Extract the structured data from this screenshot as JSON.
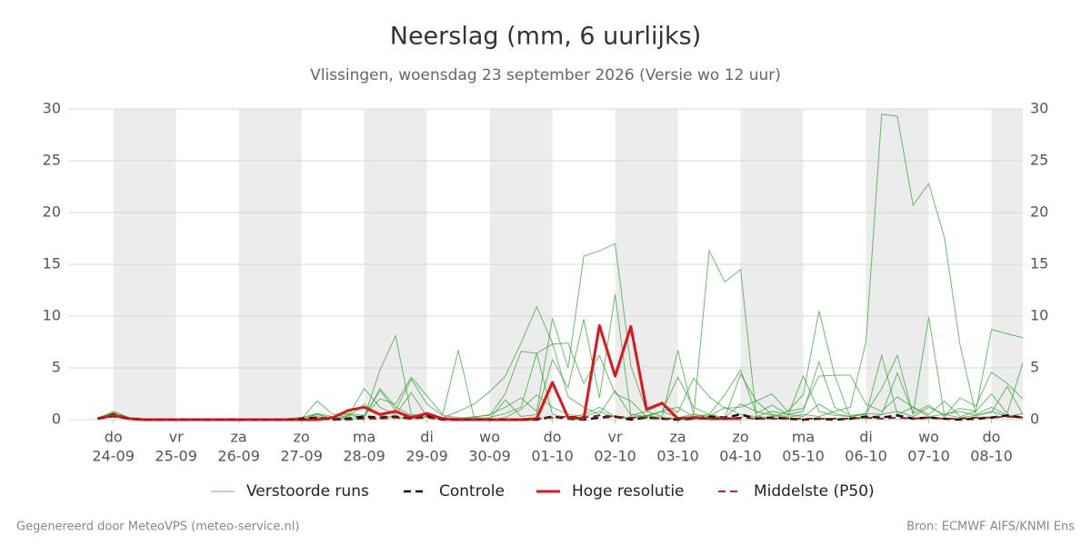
{
  "chart_data": {
    "type": "line",
    "title": "Neerslag (mm, 6 uurlijks)",
    "subtitle": "Vlissingen, woensdag 23 september 2026 (Versie wo 12 uur)",
    "footer_left": "Gegenereerd door MeteoVPS (meteo-service.nl)",
    "footer_right": "Bron: ECMWF AIFS/KNMI Ens",
    "xlim": [
      -0.72,
      14.5
    ],
    "xticks": [
      {
        "value": 0,
        "label": [
          "do",
          "24-09"
        ]
      },
      {
        "value": 1,
        "label": [
          "vr",
          "25-09"
        ]
      },
      {
        "value": 2,
        "label": [
          "za",
          "26-09"
        ]
      },
      {
        "value": 3,
        "label": [
          "zo",
          "27-09"
        ]
      },
      {
        "value": 4,
        "label": [
          "ma",
          "28-09"
        ]
      },
      {
        "value": 5,
        "label": [
          "di",
          "29-09"
        ]
      },
      {
        "value": 6,
        "label": [
          "wo",
          "30-09"
        ]
      },
      {
        "value": 7,
        "label": [
          "do",
          "01-10"
        ]
      },
      {
        "value": 8,
        "label": [
          "vr",
          "02-10"
        ]
      },
      {
        "value": 9,
        "label": [
          "za",
          "03-10"
        ]
      },
      {
        "value": 10,
        "label": [
          "zo",
          "04-10"
        ]
      },
      {
        "value": 11,
        "label": [
          "ma",
          "05-10"
        ]
      },
      {
        "value": 12,
        "label": [
          "di",
          "06-10"
        ]
      },
      {
        "value": 13,
        "label": [
          "wo",
          "07-10"
        ]
      },
      {
        "value": 14,
        "label": [
          "do",
          "08-10"
        ]
      }
    ],
    "ylim": [
      0,
      30
    ],
    "yticks": [
      0,
      5,
      10,
      15,
      20,
      25,
      30
    ],
    "y2lim": [
      0,
      30
    ],
    "y2ticks": [
      0,
      5,
      10,
      15,
      20,
      25,
      30
    ],
    "grid": true,
    "x": [
      -0.25,
      0,
      0.25,
      0.5,
      0.75,
      1,
      1.25,
      1.5,
      1.75,
      2,
      2.25,
      2.5,
      2.75,
      3,
      3.25,
      3.5,
      3.75,
      4,
      4.25,
      4.5,
      4.75,
      5,
      5.25,
      5.5,
      5.75,
      6,
      6.25,
      6.5,
      6.75,
      7,
      7.25,
      7.5,
      7.75,
      8,
      8.25,
      8.5,
      8.75,
      9,
      9.25,
      9.5,
      9.75,
      10,
      10.25,
      10.5,
      10.75,
      11,
      11.25,
      11.5,
      11.75,
      12,
      12.25,
      12.5,
      12.75,
      13,
      13.25,
      13.5,
      13.75,
      14,
      14.25,
      14.5
    ],
    "ensemble": {
      "name": "Verstoorde runs",
      "color": "#3aa63a",
      "runs": [
        [
          0.2,
          0.6,
          0.1,
          0,
          0,
          0,
          0,
          0,
          0,
          0,
          0,
          0,
          0,
          0.2,
          0.5,
          0.1,
          0.3,
          1.5,
          0.4,
          0.2,
          0.1,
          0.5,
          0,
          0,
          0,
          0,
          0.2,
          1,
          2.4,
          1.2,
          0.5,
          0.3,
          0.8,
          0.2,
          0.1,
          0.4,
          0.2,
          0.1,
          0.3,
          0.5,
          0.2,
          1.5,
          0.8,
          0.4,
          0.2,
          0.5,
          0.3,
          0.8,
          1.2,
          7.5,
          29.5,
          29.3,
          20.7,
          22.8,
          17.6,
          7.2,
          0.5,
          1.2,
          0.4,
          0.2
        ],
        [
          0.1,
          0.4,
          0,
          0,
          0,
          0,
          0,
          0,
          0,
          0,
          0,
          0,
          0,
          0,
          0.3,
          0.1,
          0,
          0.2,
          3,
          1.2,
          0.4,
          0.2,
          0.1,
          0.1,
          0.3,
          0.4,
          2.5,
          6.6,
          6.4,
          0.5,
          0.2,
          0.5,
          1.2,
          0.3,
          0.2,
          0.4,
          0.8,
          1.2,
          0.3,
          16.3,
          13.3,
          14.5,
          0.3,
          0.8,
          0.5,
          0.3,
          1.5,
          0.6,
          0.3,
          0.5,
          6.2,
          0.5,
          1.2,
          0.3,
          0.5,
          0.2,
          0.4,
          0.8,
          0.3,
          0.6
        ],
        [
          0.1,
          0.7,
          0.2,
          0,
          0,
          0,
          0,
          0,
          0,
          0,
          0,
          0,
          0.1,
          0.2,
          0.6,
          0.3,
          0.5,
          0.2,
          4.8,
          8.1,
          0.5,
          0.3,
          0.2,
          0.1,
          0.2,
          0.5,
          1.2,
          2.1,
          0.8,
          9.8,
          5,
          15.8,
          16.3,
          17,
          5.2,
          0.8,
          0.3,
          6.7,
          0.5,
          0.3,
          0.2,
          4.4,
          1.8,
          0.5,
          0.3,
          4.2,
          0.8,
          0.4,
          0.3,
          0.6,
          0.5,
          0.8,
          0.3,
          1.2,
          0.5,
          0.8,
          0.4,
          0.7,
          3.2,
          0.5
        ],
        [
          0.2,
          0.3,
          0.1,
          0,
          0,
          0,
          0,
          0,
          0,
          0,
          0,
          0,
          0,
          0,
          0.2,
          0.1,
          0.4,
          3,
          1.2,
          0.5,
          2.6,
          0.3,
          0.2,
          0.8,
          1.5,
          2.7,
          4.2,
          7.4,
          10.9,
          7.4,
          2.2,
          1.2,
          0.5,
          2.8,
          0.4,
          0.8,
          1.5,
          0.7,
          4,
          2.2,
          1.1,
          1.2,
          1.8,
          2.5,
          0.8,
          2.4,
          10.5,
          4.3,
          4.3,
          1.5,
          0.8,
          2.2,
          1.2,
          0.5,
          1.8,
          0.3,
          0.8,
          2.5,
          0.6,
          5.5
        ],
        [
          0.1,
          0.8,
          0.2,
          0,
          0,
          0,
          0,
          0,
          0,
          0,
          0,
          0,
          0,
          0.1,
          1.8,
          0.5,
          0.6,
          0.4,
          2,
          1.5,
          4.1,
          2.3,
          0.5,
          6.7,
          0.2,
          0.1,
          1.9,
          0.3,
          0.5,
          5.8,
          3.1,
          9.7,
          2.1,
          12.1,
          0.5,
          0.3,
          0.8,
          4.1,
          1.2,
          0.5,
          2.4,
          4.8,
          0.6,
          1.4,
          0.5,
          0.8,
          5.6,
          1.2,
          0.4,
          0.6,
          3,
          6.2,
          0.5,
          9.9,
          0.4,
          1.1,
          0.8,
          8.7,
          8.3,
          7.9
        ],
        [
          0.1,
          0.5,
          0,
          0,
          0,
          0,
          0,
          0,
          0,
          0,
          0,
          0,
          0,
          0,
          0.5,
          0.1,
          0.2,
          0.4,
          2.8,
          0.9,
          3.9,
          1.5,
          0.4,
          0.2,
          0.1,
          0.2,
          0.6,
          1.2,
          6.4,
          7.3,
          7.4,
          3.5,
          6.2,
          2.5,
          1.8,
          0.3,
          0.8,
          0.2,
          0.5,
          0.3,
          1.2,
          0.5,
          0.3,
          0.2,
          0.8,
          1.1,
          4.2,
          4.3,
          0.2,
          0.1,
          0.5,
          4.5,
          0.6,
          1.4,
          0.3,
          2.1,
          1.3,
          4.6,
          3.5,
          2
        ]
      ]
    },
    "series": [
      {
        "name": "Controle",
        "color": "#111111",
        "dash": true,
        "width": 2.5,
        "values": [
          0.1,
          0.5,
          0.1,
          0,
          0,
          0,
          0,
          0,
          0,
          0,
          0,
          0,
          0,
          0.1,
          0.2,
          0,
          0.1,
          0.3,
          0.2,
          0.3,
          0.1,
          0.4,
          0,
          0,
          0,
          0,
          0,
          0,
          0,
          0.3,
          0.1,
          0,
          0.2,
          0.3,
          0,
          0.2,
          0.1,
          0,
          0.1,
          0.3,
          0.2,
          0.5,
          0.1,
          0.2,
          0.1,
          0,
          0.1,
          0,
          0.1,
          0.3,
          0.2,
          0.4,
          0.1,
          0.2,
          0.1,
          0,
          0.1,
          0.2,
          0.4,
          0.2
        ]
      },
      {
        "name": "Hoge resolutie",
        "color": "#e0151b",
        "dash": false,
        "width": 3,
        "values": [
          0.1,
          0.4,
          0.1,
          0,
          0,
          0,
          0,
          0,
          0,
          0,
          0,
          0,
          0,
          0,
          0,
          0.2,
          0.9,
          1.2,
          0.5,
          0.8,
          0.2,
          0.6,
          0.1,
          0,
          0,
          0,
          0,
          0,
          0.1,
          3.6,
          0.2,
          0.1,
          9.1,
          4.2,
          9,
          1,
          1.6,
          0.1,
          0.2,
          0.1,
          0.1,
          0.1,
          null,
          null,
          null,
          null,
          null,
          null,
          null,
          null,
          null,
          null,
          null,
          null,
          null,
          null,
          null,
          null,
          null,
          null
        ]
      },
      {
        "name": "Middelste (P50)",
        "color": "#a01010",
        "dash": true,
        "width": 1.8,
        "values": [
          0.1,
          0.3,
          0.1,
          0,
          0,
          0,
          0,
          0,
          0,
          0,
          0,
          0,
          0,
          0,
          0.1,
          0,
          0,
          0.1,
          0.1,
          0.2,
          0.1,
          0.2,
          0,
          0,
          0,
          0,
          0,
          0,
          0.1,
          0.2,
          0.3,
          0.2,
          0.4,
          0.3,
          0.2,
          0.2,
          0.1,
          0.1,
          0.1,
          0.1,
          0.1,
          0.2,
          0.1,
          0.1,
          0.1,
          0.1,
          0.1,
          0.1,
          0.1,
          0.2,
          0.1,
          0.2,
          0.1,
          0.2,
          0.1,
          0.1,
          0.2,
          0.2,
          0.3,
          0.2
        ]
      }
    ]
  }
}
